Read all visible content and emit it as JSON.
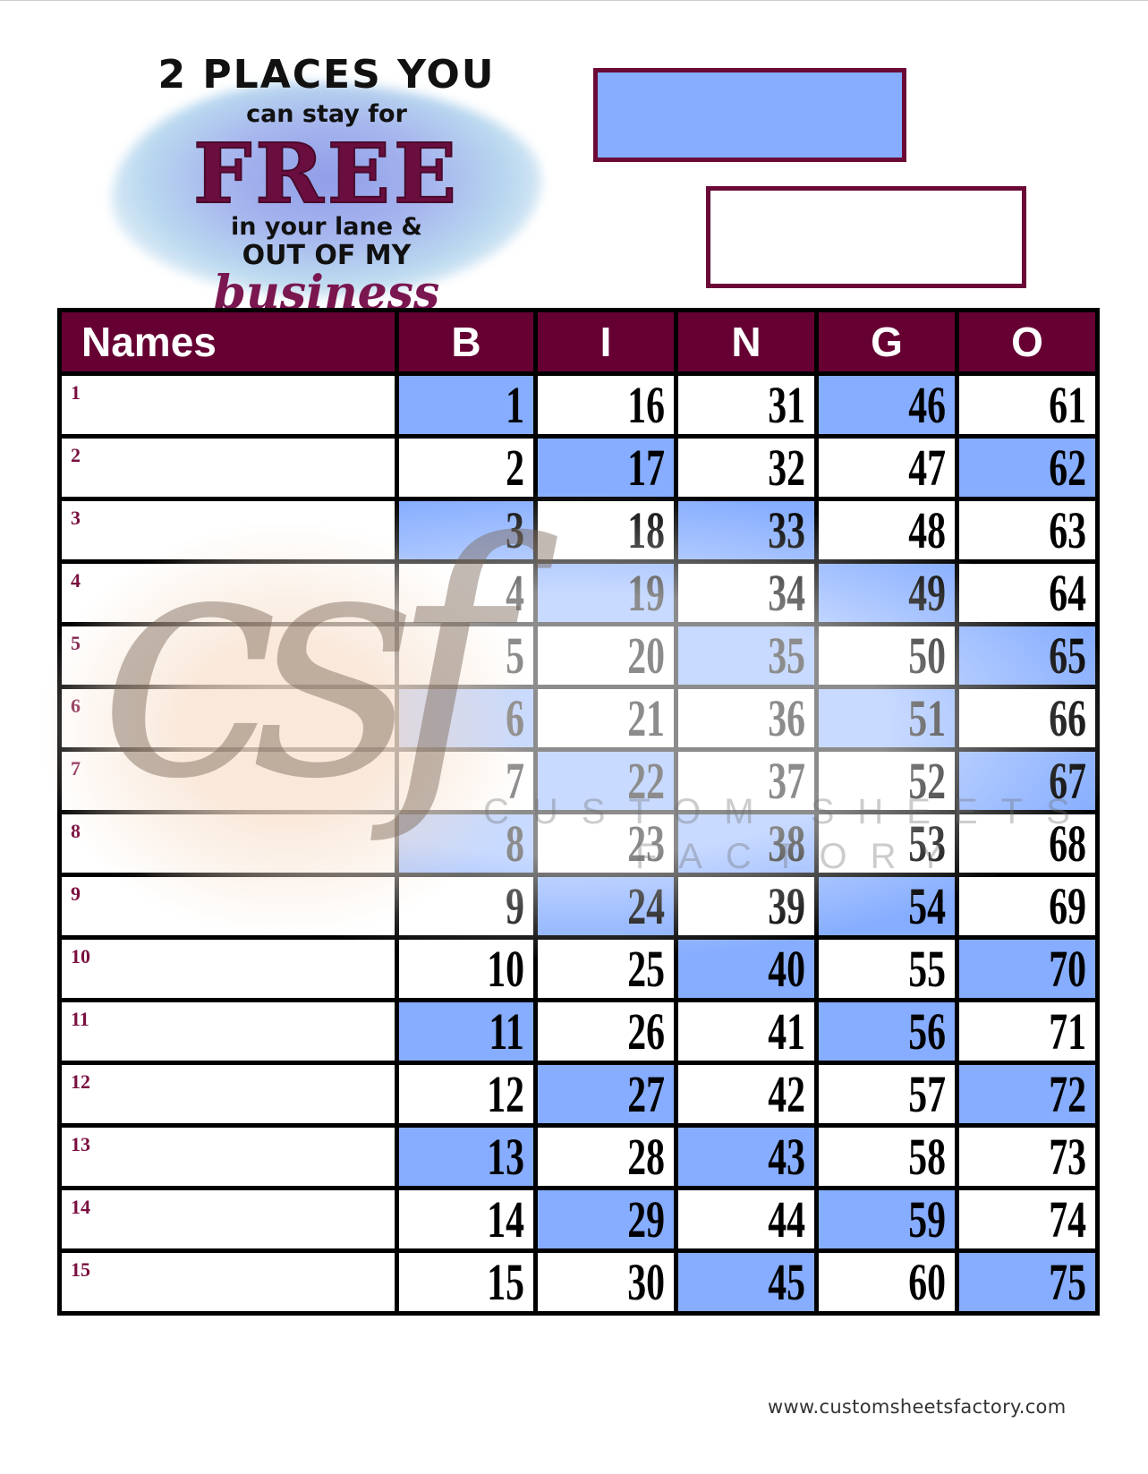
{
  "logo": {
    "line1": "2 PLACES YOU",
    "line2": "can stay for",
    "line3": "FREE",
    "line4": "in your lane &",
    "line5": "OUT OF MY",
    "line6": "business"
  },
  "colors": {
    "header_bg": "#660033",
    "highlight": "#86adff",
    "border": "#000000"
  },
  "table": {
    "headers": [
      "Names",
      "B",
      "I",
      "N",
      "G",
      "O"
    ],
    "rows": [
      {
        "label": "1",
        "numbers": [
          1,
          16,
          31,
          46,
          61
        ],
        "highlighted": [
          "B",
          "G"
        ]
      },
      {
        "label": "2",
        "numbers": [
          2,
          17,
          32,
          47,
          62
        ],
        "highlighted": [
          "I",
          "O"
        ]
      },
      {
        "label": "3",
        "numbers": [
          3,
          18,
          33,
          48,
          63
        ],
        "highlighted": [
          "B",
          "N"
        ]
      },
      {
        "label": "4",
        "numbers": [
          4,
          19,
          34,
          49,
          64
        ],
        "highlighted": [
          "I",
          "G"
        ]
      },
      {
        "label": "5",
        "numbers": [
          5,
          20,
          35,
          50,
          65
        ],
        "highlighted": [
          "N",
          "O"
        ]
      },
      {
        "label": "6",
        "numbers": [
          6,
          21,
          36,
          51,
          66
        ],
        "highlighted": [
          "B",
          "G"
        ]
      },
      {
        "label": "7",
        "numbers": [
          7,
          22,
          37,
          52,
          67
        ],
        "highlighted": [
          "I",
          "O"
        ]
      },
      {
        "label": "8",
        "numbers": [
          8,
          23,
          38,
          53,
          68
        ],
        "highlighted": [
          "B",
          "N"
        ]
      },
      {
        "label": "9",
        "numbers": [
          9,
          24,
          39,
          54,
          69
        ],
        "highlighted": [
          "I",
          "G"
        ]
      },
      {
        "label": "10",
        "numbers": [
          10,
          25,
          40,
          55,
          70
        ],
        "highlighted": [
          "N",
          "O"
        ]
      },
      {
        "label": "11",
        "numbers": [
          11,
          26,
          41,
          56,
          71
        ],
        "highlighted": [
          "B",
          "G"
        ]
      },
      {
        "label": "12",
        "numbers": [
          12,
          27,
          42,
          57,
          72
        ],
        "highlighted": [
          "I",
          "O"
        ]
      },
      {
        "label": "13",
        "numbers": [
          13,
          28,
          43,
          58,
          73
        ],
        "highlighted": [
          "B",
          "N"
        ]
      },
      {
        "label": "14",
        "numbers": [
          14,
          29,
          44,
          59,
          74
        ],
        "highlighted": [
          "I",
          "G"
        ]
      },
      {
        "label": "15",
        "numbers": [
          15,
          30,
          45,
          60,
          75
        ],
        "highlighted": [
          "N",
          "O"
        ]
      }
    ]
  },
  "watermark": {
    "monogram": "csf",
    "brand_line1": "CUSTOM SHEETS",
    "brand_line2": "FACTORY"
  },
  "footer": {
    "url": "www.customsheetsfactory.com"
  }
}
